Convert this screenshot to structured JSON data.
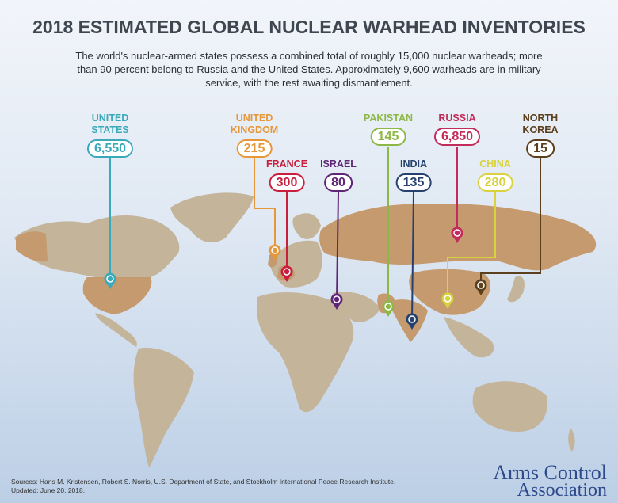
{
  "title": "2018 ESTIMATED GLOBAL NUCLEAR WARHEAD INVENTORIES",
  "subtitle": "The world's nuclear-armed states possess a combined total of roughly 15,000 nuclear warheads; more than 90 percent belong to Russia and the United States. Approximately 9,600 warheads are in military service, with the rest awaiting dismantlement.",
  "countries": [
    {
      "name": "UNITED STATES",
      "value": "6,550",
      "color": "#3aaabb"
    },
    {
      "name": "UNITED KINGDOM",
      "value": "215",
      "color": "#e6973a"
    },
    {
      "name": "FRANCE",
      "value": "300",
      "color": "#c81f3d"
    },
    {
      "name": "ISRAEL",
      "value": "80",
      "color": "#5f2576"
    },
    {
      "name": "PAKISTAN",
      "value": "145",
      "color": "#8db746"
    },
    {
      "name": "INDIA",
      "value": "135",
      "color": "#26416e"
    },
    {
      "name": "RUSSIA",
      "value": "6,850",
      "color": "#c22c5a"
    },
    {
      "name": "CHINA",
      "value": "280",
      "color": "#d9d23e"
    },
    {
      "name": "NORTH KOREA",
      "value": "15",
      "color": "#5c3f1c"
    }
  ],
  "colors": {
    "land": "#c4b49a",
    "nuclear_state": "#c49a6e",
    "ocean": "#dbe5f2"
  },
  "sources": "Sources: Hans M. Kristensen, Robert S. Norris, U.S. Department of State, and Stockholm International Peace Research Institute.",
  "updated": "Updated: June 20, 2018.",
  "logo": {
    "line1": "Arms Control",
    "line2": "Association"
  }
}
